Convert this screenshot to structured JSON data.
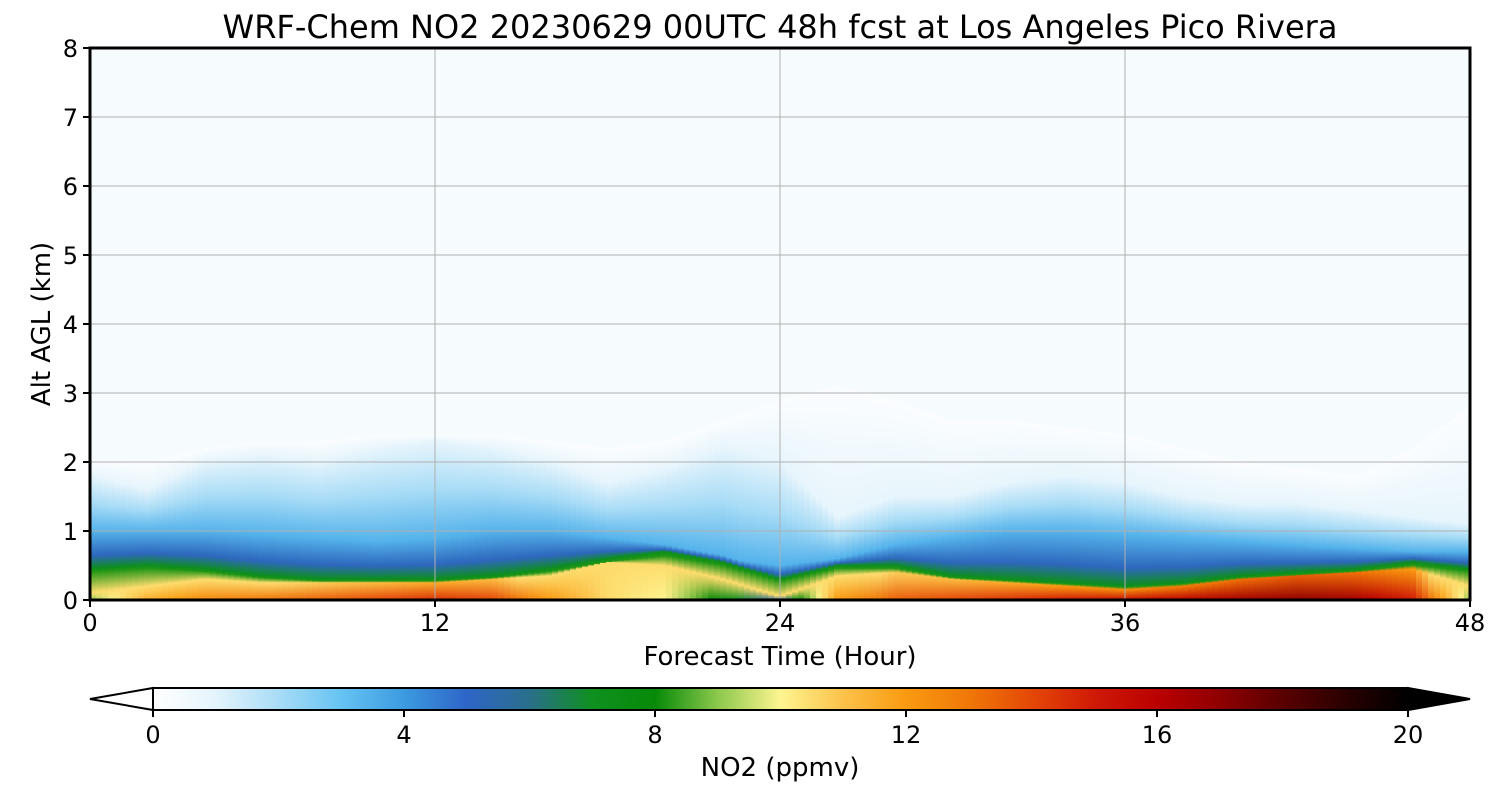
{
  "chart_data": {
    "type": "heatmap",
    "title": "WRF-Chem NO2  20230629 00UTC 48h fcst at Los Angeles Pico Rivera",
    "xlabel": "Forecast Time (Hour)",
    "ylabel": "Alt AGL (km)",
    "xlim": [
      0,
      48
    ],
    "ylim": [
      0,
      8
    ],
    "x_ticks": [
      0,
      12,
      24,
      36,
      48
    ],
    "y_ticks": [
      0,
      1,
      2,
      3,
      4,
      5,
      6,
      7,
      8
    ],
    "grid": true,
    "colorbar": {
      "label": "NO2  (ppmv)",
      "range": [
        0,
        20
      ],
      "ticks": [
        0,
        4,
        8,
        12,
        16,
        20
      ],
      "extend": "both",
      "placement": "bottom"
    },
    "profile": {
      "hours": [
        0,
        2,
        4,
        6,
        8,
        10,
        12,
        14,
        16,
        18,
        20,
        22,
        24,
        26,
        28,
        30,
        32,
        34,
        36,
        38,
        40,
        42,
        44,
        46,
        48
      ],
      "surface_peak_ppmv": [
        9,
        11.5,
        12.5,
        13,
        13.5,
        14,
        14.5,
        14,
        12,
        10.5,
        10,
        7.5,
        5.5,
        12,
        13.5,
        14,
        14.5,
        15,
        15.5,
        16,
        16.5,
        17,
        16.5,
        15,
        9
      ],
      "high_core_top_km": [
        0.1,
        0.2,
        0.3,
        0.25,
        0.25,
        0.25,
        0.25,
        0.3,
        0.35,
        0.55,
        0.5,
        0.3,
        0.05,
        0.35,
        0.4,
        0.3,
        0.25,
        0.2,
        0.15,
        0.2,
        0.3,
        0.35,
        0.4,
        0.45,
        0.2
      ],
      "green_band_top_km": [
        0.45,
        0.5,
        0.45,
        0.35,
        0.3,
        0.3,
        0.3,
        0.35,
        0.45,
        0.6,
        0.7,
        0.55,
        0.3,
        0.5,
        0.5,
        0.35,
        0.3,
        0.25,
        0.2,
        0.25,
        0.35,
        0.4,
        0.45,
        0.55,
        0.45
      ],
      "blue_layer_top_km": [
        1.0,
        1.0,
        1.0,
        0.95,
        0.9,
        0.85,
        0.9,
        1.0,
        1.0,
        0.9,
        0.8,
        0.6,
        0.5,
        0.6,
        0.8,
        0.9,
        1.0,
        1.0,
        0.95,
        0.9,
        0.85,
        0.8,
        0.75,
        0.7,
        0.7
      ],
      "light_blue_top_km": [
        1.8,
        1.6,
        2.0,
        2.1,
        2.0,
        2.2,
        2.3,
        2.2,
        2.0,
        1.7,
        1.9,
        2.2,
        2.0,
        1.2,
        1.5,
        1.5,
        1.7,
        1.8,
        1.7,
        1.5,
        1.4,
        1.4,
        1.3,
        1.2,
        1.1
      ],
      "faint_top_km": [
        2.0,
        2.0,
        2.2,
        2.3,
        2.3,
        2.4,
        2.4,
        2.4,
        2.3,
        2.2,
        2.3,
        2.6,
        2.9,
        3.1,
        2.9,
        2.6,
        2.6,
        2.5,
        2.4,
        2.2,
        2.0,
        1.9,
        1.8,
        2.2,
        2.8
      ]
    }
  }
}
